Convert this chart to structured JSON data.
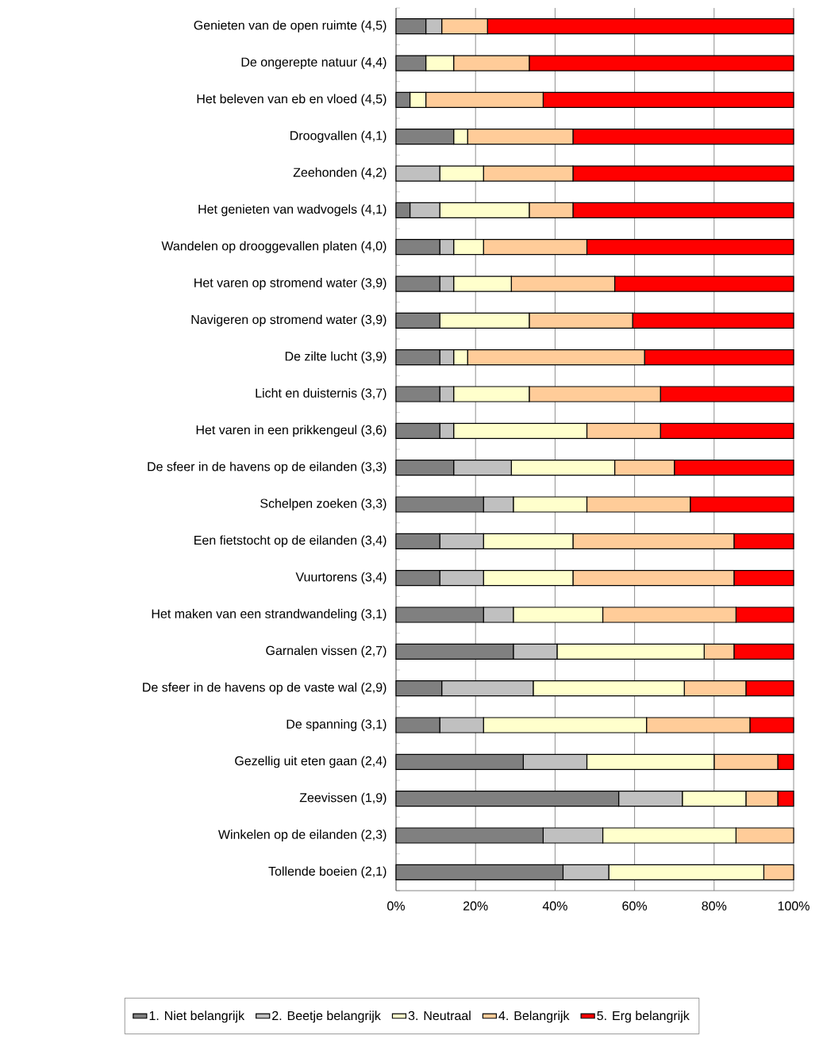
{
  "chart_data": {
    "type": "bar",
    "orientation": "horizontal",
    "stacked": true,
    "categories": [
      "Genieten van de open ruimte (4,5)",
      "De ongerepte natuur (4,4)",
      "Het beleven van eb en vloed (4,5)",
      "Droogvallen (4,1)",
      "Zeehonden (4,2)",
      "Het genieten van wadvogels (4,1)",
      "Wandelen op drooggevallen platen (4,0)",
      "Het varen op stromend water (3,9)",
      "Navigeren op stromend water (3,9)",
      "De zilte lucht (3,9)",
      "Licht en duisternis (3,7)",
      "Het varen in een prikkengeul (3,6)",
      "De sfeer in de havens op de eilanden (3,3)",
      "Schelpen zoeken (3,3)",
      "Een fietstocht op de eilanden (3,4)",
      "Vuurtorens (3,4)",
      "Het maken van een strandwandeling (3,1)",
      "Garnalen vissen (2,7)",
      "De sfeer in de havens op de vaste wal (2,9)",
      "De spanning (3,1)",
      "Gezellig uit eten gaan (2,4)",
      "Zeevissen (1,9)",
      "Winkelen op de eilanden (2,3)",
      "Tollende boeien (2,1)"
    ],
    "series": [
      {
        "name": "1. Niet belangrijk",
        "color": "#808080",
        "values": [
          7.5,
          7.5,
          3.5,
          14.5,
          0,
          3.5,
          11,
          11,
          11,
          11,
          11,
          11,
          14.5,
          22,
          11,
          11,
          22,
          29.5,
          11.5,
          11,
          32,
          56,
          37,
          42
        ]
      },
      {
        "name": "2. Beetje belangrijk",
        "color": "#c0c0c0",
        "values": [
          4,
          0,
          0,
          0,
          11,
          7.5,
          3.5,
          3.5,
          0,
          3.5,
          3.5,
          3.5,
          14.5,
          7.5,
          11,
          11,
          7.5,
          11,
          23,
          11,
          16,
          16,
          15,
          11.5
        ]
      },
      {
        "name": "3. Neutraal",
        "color": "#ffffcc",
        "values": [
          0,
          7,
          4,
          3.5,
          11,
          22.5,
          7.5,
          14.5,
          22.5,
          3.5,
          19,
          33.5,
          26,
          18.5,
          22.5,
          22.5,
          22.5,
          37,
          38,
          41,
          32,
          16,
          33.5,
          39
        ]
      },
      {
        "name": "4. Belangrijk",
        "color": "#ffcc99",
        "values": [
          11.5,
          19,
          29.5,
          26.5,
          22.5,
          11,
          26,
          26,
          26,
          44.5,
          33,
          18.5,
          15,
          26,
          40.5,
          40.5,
          33.5,
          7.5,
          15.5,
          26,
          16,
          8,
          14.5,
          7.5
        ]
      },
      {
        "name": "5. Erg belangrijk",
        "color": "#ff0000",
        "values": [
          77,
          66.5,
          63,
          55.5,
          55.5,
          55.5,
          52,
          45,
          40.5,
          37.5,
          33.5,
          33.5,
          30,
          26,
          15,
          15,
          14.5,
          15,
          12,
          11,
          4,
          4,
          0,
          0
        ]
      }
    ],
    "xlim": [
      0,
      100
    ],
    "xticks": [
      {
        "value": 0,
        "label": "0%"
      },
      {
        "value": 20,
        "label": "20%"
      },
      {
        "value": 40,
        "label": "40%"
      },
      {
        "value": 60,
        "label": "60%"
      },
      {
        "value": 80,
        "label": "80%"
      },
      {
        "value": 100,
        "label": "100%"
      }
    ],
    "grid": "x",
    "legend": "bottom"
  }
}
